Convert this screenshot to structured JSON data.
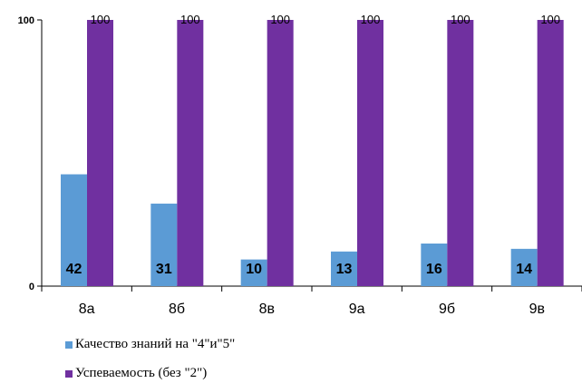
{
  "chart_data": {
    "type": "bar",
    "categories": [
      "8а",
      "8б",
      "8в",
      "9а",
      "9б",
      "9в"
    ],
    "series": [
      {
        "name": "Качество знаний на \"4\"и\"5\"",
        "values": [
          42,
          31,
          10,
          13,
          16,
          14
        ],
        "color": "#5b9bd5"
      },
      {
        "name": "Успеваемость (без \"2\")",
        "values": [
          100,
          100,
          100,
          100,
          100,
          100
        ],
        "color": "#7030a0"
      }
    ],
    "ylim": [
      0,
      100
    ],
    "yticks": [
      "0",
      "100"
    ],
    "grid": false,
    "legend": "bottom"
  }
}
